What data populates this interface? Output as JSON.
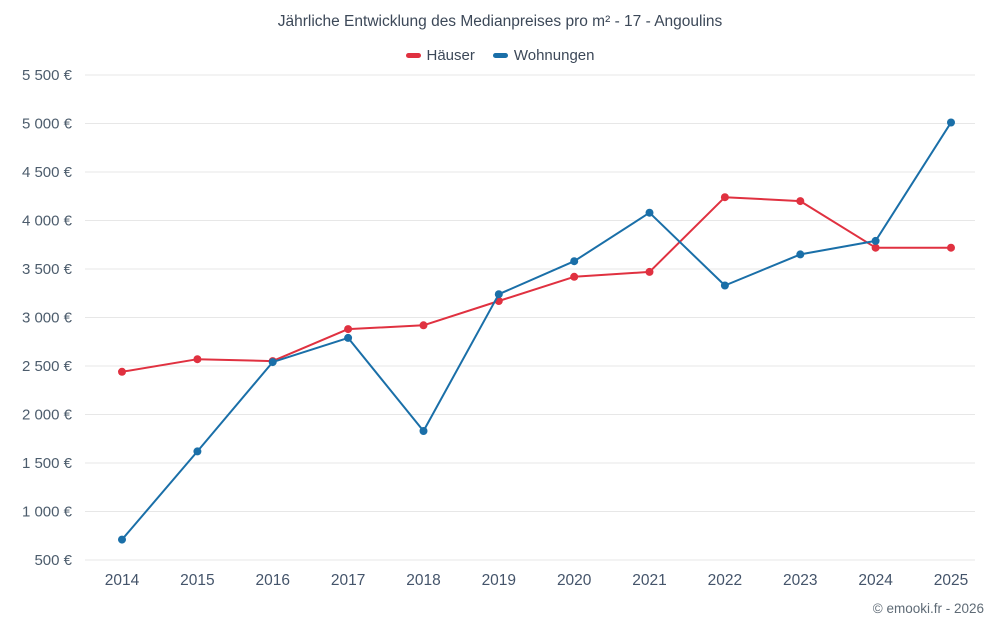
{
  "chart_data": {
    "type": "line",
    "title": "Jährliche Entwicklung des Medianpreises pro m² - 17 - Angoulins",
    "categories": [
      "2014",
      "2015",
      "2016",
      "2017",
      "2018",
      "2019",
      "2020",
      "2021",
      "2022",
      "2023",
      "2024",
      "2025"
    ],
    "series": [
      {
        "name": "Häuser",
        "color": "#e03140",
        "values": [
          2440,
          2570,
          2550,
          2880,
          2920,
          3170,
          3420,
          3470,
          4240,
          4200,
          3720,
          3720
        ]
      },
      {
        "name": "Wohnungen",
        "color": "#1a6fa8",
        "values": [
          710,
          1620,
          2540,
          2790,
          1830,
          3240,
          3580,
          4080,
          3330,
          3650,
          3790,
          5010
        ]
      }
    ],
    "y_axis": {
      "min": 500,
      "max": 5500,
      "step": 500,
      "tick_suffix": " €"
    },
    "xlabel": "",
    "ylabel": "",
    "grid": "horizontal",
    "gridline_color": "#e7e7e7",
    "legend_position": "top"
  },
  "footer": {
    "copyright": "© emooki.fr - 2026"
  }
}
